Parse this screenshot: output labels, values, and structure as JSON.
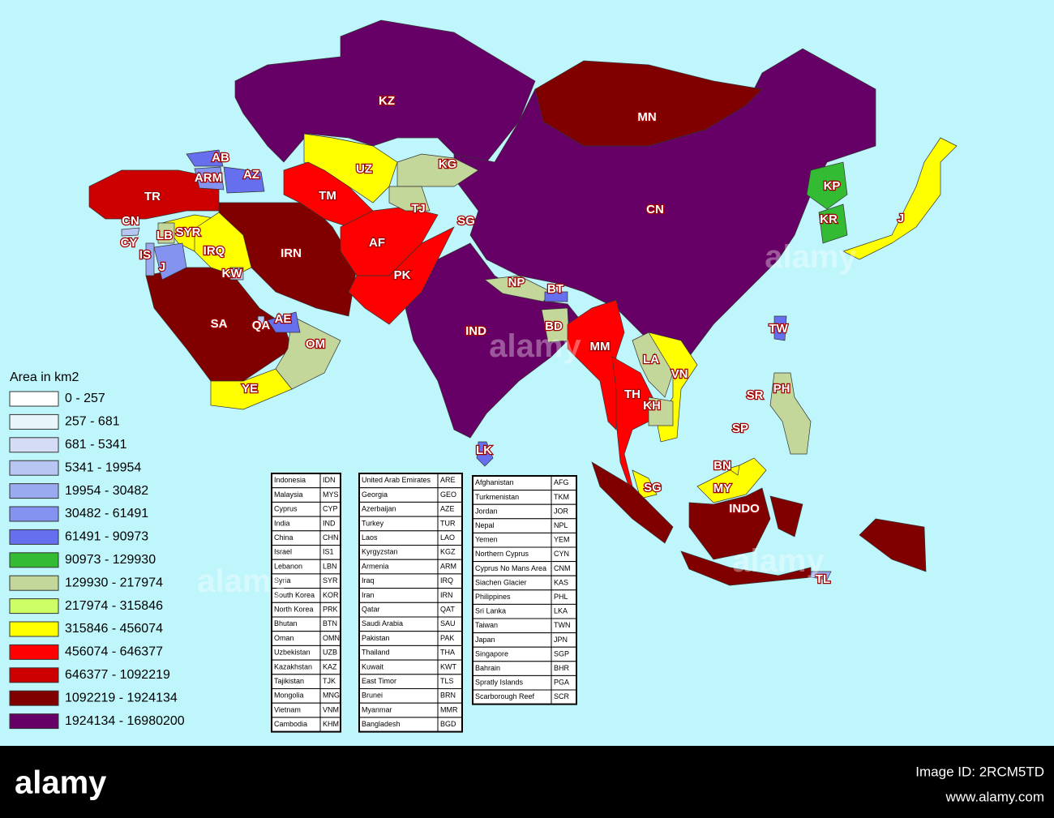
{
  "map": {
    "countries": [
      {
        "label": "KZ",
        "color": "#660066"
      },
      {
        "label": "MN",
        "color": "#800000"
      },
      {
        "label": "CN",
        "color": "#660066"
      },
      {
        "label": "AB",
        "color": "#6670ee"
      },
      {
        "label": "ARM",
        "color": "#8493f0"
      },
      {
        "label": "AZ",
        "color": "#6670ee"
      },
      {
        "label": "UZ",
        "color": "#ffff00"
      },
      {
        "label": "KG",
        "color": "#c4d79b"
      },
      {
        "label": "TR",
        "color": "#cc0000"
      },
      {
        "label": "TM",
        "color": "#ff0000"
      },
      {
        "label": "TJ",
        "color": "#c4d79b"
      },
      {
        "label": "SG",
        "color": "#660066"
      },
      {
        "label": "CN",
        "color": "#b7c6f2"
      },
      {
        "label": "CY",
        "color": "#b7c6f2"
      },
      {
        "label": "LB",
        "color": "#c4d79b"
      },
      {
        "label": "SYR",
        "color": "#ffff00"
      },
      {
        "label": "IRQ",
        "color": "#ffff00"
      },
      {
        "label": "IS",
        "color": "#99aaf0"
      },
      {
        "label": "J",
        "color": "#8493f0"
      },
      {
        "label": "KW",
        "color": "#b7c6f2"
      },
      {
        "label": "IRN",
        "color": "#800000"
      },
      {
        "label": "AF",
        "color": "#ff0000"
      },
      {
        "label": "PK",
        "color": "#ff0000"
      },
      {
        "label": "NP",
        "color": "#c4d79b"
      },
      {
        "label": "BT",
        "color": "#6670ee"
      },
      {
        "label": "BD",
        "color": "#c4d79b"
      },
      {
        "label": "IND",
        "color": "#660066"
      },
      {
        "label": "MM",
        "color": "#ff0000"
      },
      {
        "label": "LA",
        "color": "#c4d79b"
      },
      {
        "label": "VN",
        "color": "#ffff00"
      },
      {
        "label": "TH",
        "color": "#ff0000"
      },
      {
        "label": "KH",
        "color": "#c4d79b"
      },
      {
        "label": "SA",
        "color": "#800000"
      },
      {
        "label": "QA",
        "color": "#b7c6f2"
      },
      {
        "label": "AE",
        "color": "#6670ee"
      },
      {
        "label": "OM",
        "color": "#c4d79b"
      },
      {
        "label": "YE",
        "color": "#ffff00"
      },
      {
        "label": "LK",
        "color": "#6670ee"
      },
      {
        "label": "SG",
        "color": "#e8f6fb"
      },
      {
        "label": "KP",
        "color": "#33bb33"
      },
      {
        "label": "KR",
        "color": "#33bb33"
      },
      {
        "label": "J",
        "color": "#ffff00"
      },
      {
        "label": "TW",
        "color": "#6670ee"
      },
      {
        "label": "SR",
        "color": "#e8f6fb"
      },
      {
        "label": "PH",
        "color": "#c4d79b"
      },
      {
        "label": "SP",
        "color": "#e8f6fb"
      },
      {
        "label": "BN",
        "color": "#ffff00"
      },
      {
        "label": "MY",
        "color": "#ffff00"
      },
      {
        "label": "INDO",
        "color": "#800000"
      },
      {
        "label": "TL",
        "color": "#99aaf0"
      }
    ],
    "legend": {
      "title": "Area in km2",
      "items": [
        {
          "label": "0 - 257",
          "color": "#ffffff"
        },
        {
          "label": "257 - 681",
          "color": "#e8f6fb"
        },
        {
          "label": "681 - 5341",
          "color": "#d4dcf6"
        },
        {
          "label": "5341 - 19954",
          "color": "#b7c6f2"
        },
        {
          "label": "19954 - 30482",
          "color": "#99aaf0"
        },
        {
          "label": "30482 - 61491",
          "color": "#8493f0"
        },
        {
          "label": "61491 - 90973",
          "color": "#6670ee"
        },
        {
          "label": "90973 - 129930",
          "color": "#33bb33"
        },
        {
          "label": "129930 - 217974",
          "color": "#c4d79b"
        },
        {
          "label": "217974 - 315846",
          "color": "#ccff66"
        },
        {
          "label": "315846 - 456074",
          "color": "#ffff00"
        },
        {
          "label": "456074 - 646377",
          "color": "#ff0000"
        },
        {
          "label": "646377 - 1092219",
          "color": "#cc0000"
        },
        {
          "label": "1092219 - 1924134",
          "color": "#800000"
        },
        {
          "label": "1924134 - 16980200",
          "color": "#660066"
        }
      ]
    },
    "tables": [
      [
        [
          "Indonesia",
          "IDN"
        ],
        [
          "Malaysia",
          "MYS"
        ],
        [
          "Cyprus",
          "CYP"
        ],
        [
          "India",
          "IND"
        ],
        [
          "China",
          "CHN"
        ],
        [
          "Israel",
          "IS1"
        ],
        [
          "Lebanon",
          "LBN"
        ],
        [
          "Syria",
          "SYR"
        ],
        [
          "South Korea",
          "KOR"
        ],
        [
          "North Korea",
          "PRK"
        ],
        [
          "Bhutan",
          "BTN"
        ],
        [
          "Oman",
          "OMN"
        ],
        [
          "Uzbekistan",
          "UZB"
        ],
        [
          "Kazakhstan",
          "KAZ"
        ],
        [
          "Tajikistan",
          "TJK"
        ],
        [
          "Mongolia",
          "MNG"
        ],
        [
          "Vietnam",
          "VNM"
        ],
        [
          "Cambodia",
          "KHM"
        ]
      ],
      [
        [
          "United Arab Emirates",
          "ARE"
        ],
        [
          "Georgia",
          "GEO"
        ],
        [
          "Azerbaijan",
          "AZE"
        ],
        [
          "Turkey",
          "TUR"
        ],
        [
          "Laos",
          "LAO"
        ],
        [
          "Kyrgyzstan",
          "KGZ"
        ],
        [
          "Armenia",
          "ARM"
        ],
        [
          "Iraq",
          "IRQ"
        ],
        [
          "Iran",
          "IRN"
        ],
        [
          "Qatar",
          "QAT"
        ],
        [
          "Saudi Arabia",
          "SAU"
        ],
        [
          "Pakistan",
          "PAK"
        ],
        [
          "Thailand",
          "THA"
        ],
        [
          "Kuwait",
          "KWT"
        ],
        [
          "East Timor",
          "TLS"
        ],
        [
          "Brunei",
          "BRN"
        ],
        [
          "Myanmar",
          "MMR"
        ],
        [
          "Bangladesh",
          "BGD"
        ]
      ],
      [
        [
          "Afghanistan",
          "AFG"
        ],
        [
          "Turkmenistan",
          "TKM"
        ],
        [
          "Jordan",
          "JOR"
        ],
        [
          "Nepal",
          "NPL"
        ],
        [
          "Yemen",
          "YEM"
        ],
        [
          "Northern Cyprus",
          "CYN"
        ],
        [
          "Cyprus No Mans Area",
          "CNM"
        ],
        [
          "Siachen Glacier",
          "KAS"
        ],
        [
          "Philippines",
          "PHL"
        ],
        [
          "Sri Lanka",
          "LKA"
        ],
        [
          "Taiwan",
          "TWN"
        ],
        [
          "Japan",
          "JPN"
        ],
        [
          "Singapore",
          "SGP"
        ],
        [
          "Bahrain",
          "BHR"
        ],
        [
          "Spratly Islands",
          "PGA"
        ],
        [
          "Scarborough Reef",
          "SCR"
        ]
      ]
    ]
  },
  "watermark": "alamy",
  "footer": {
    "logo": "alamy",
    "image_id": "Image ID: 2RCM5TD",
    "url": "www.alamy.com"
  }
}
